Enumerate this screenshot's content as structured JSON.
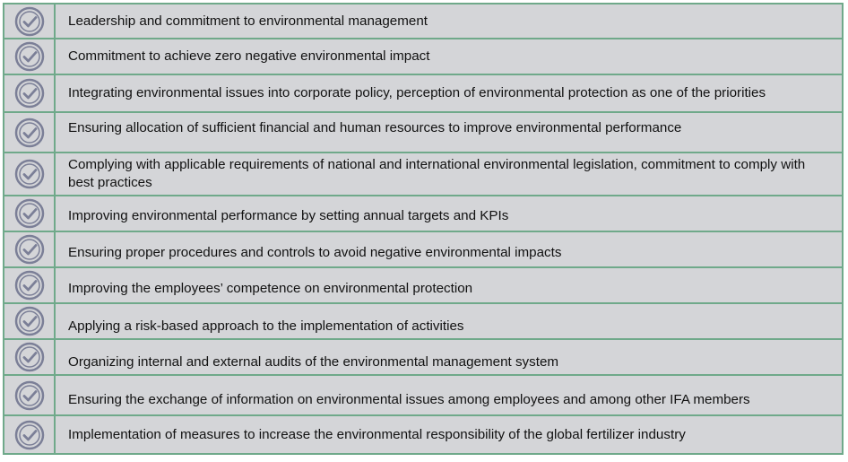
{
  "icon": "check-circle-icon",
  "colors": {
    "row_background": "#d4d5d8",
    "border": "#6fa98a",
    "icon_stroke": "#7b7f97",
    "text": "#111111"
  },
  "items": [
    {
      "label": "Leadership and commitment to environmental management"
    },
    {
      "label": "Commitment to achieve zero negative environmental impact"
    },
    {
      "label": "Integrating environmental issues into corporate policy, perception of environmental protection as one of the priorities"
    },
    {
      "label": "Ensuring allocation of sufficient financial and human resources to improve environmental performance"
    },
    {
      "label": "Complying with applicable requirements of national and international environmental legislation, commitment to comply with best practices"
    },
    {
      "label": "Improving environmental performance by setting annual targets and KPIs"
    },
    {
      "label": "Ensuring proper procedures and controls to avoid negative environmental impacts"
    },
    {
      "label": "Improving the employees’ competence on environmental protection"
    },
    {
      "label": "Applying a risk-based approach to the implementation of activities"
    },
    {
      "label": "Organizing internal and external audits of the environmental management system"
    },
    {
      "label": "Ensuring the exchange of information on environmental issues among employees and among other IFA members"
    },
    {
      "label": "Implementation of measures to increase the environmental responsibility of the global fertilizer industry"
    }
  ]
}
